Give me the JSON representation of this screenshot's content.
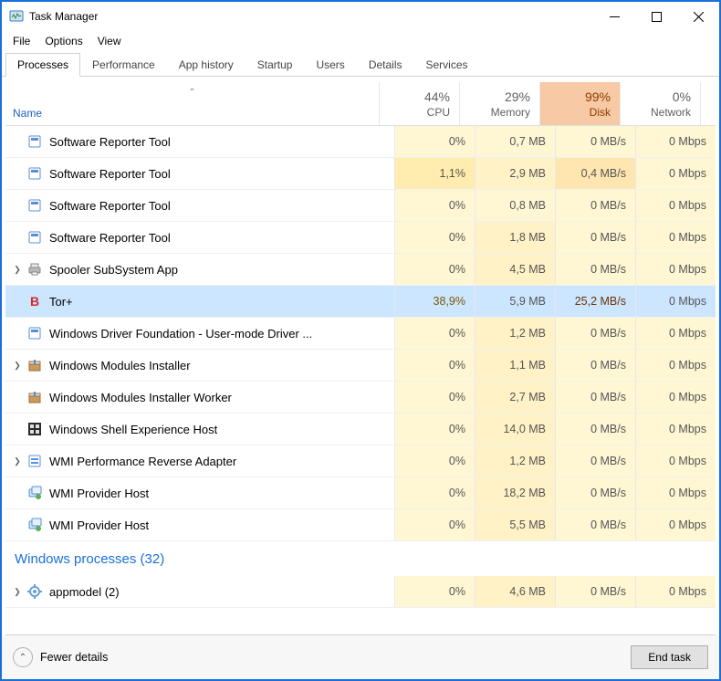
{
  "window": {
    "title": "Task Manager"
  },
  "menu": {
    "items": [
      "File",
      "Options",
      "View"
    ]
  },
  "tabs": {
    "items": [
      "Processes",
      "Performance",
      "App history",
      "Startup",
      "Users",
      "Details",
      "Services"
    ],
    "active_index": 0
  },
  "columns": {
    "name_label": "Name",
    "cols": [
      {
        "pct": "44%",
        "label": "CPU",
        "hot": false
      },
      {
        "pct": "29%",
        "label": "Memory",
        "hot": false
      },
      {
        "pct": "99%",
        "label": "Disk",
        "hot": true
      },
      {
        "pct": "0%",
        "label": "Network",
        "hot": false
      }
    ]
  },
  "rows": [
    {
      "icon": "generic-app",
      "name": "Software Reporter Tool",
      "expandable": false,
      "selected": false,
      "cpu": "0%",
      "cpu_cls": "cpu-low",
      "mem": "0,7 MB",
      "mem_cls": "memlow",
      "disk": "0 MB/s",
      "disk_cls": "disk-zero",
      "net": "0 Mbps"
    },
    {
      "icon": "generic-app",
      "name": "Software Reporter Tool",
      "expandable": false,
      "selected": false,
      "cpu": "1,1%",
      "cpu_cls": "cpu-mid",
      "mem": "2,9 MB",
      "mem_cls": "mem",
      "disk": "0,4 MB/s",
      "disk_cls": "disk-mid",
      "net": "0 Mbps"
    },
    {
      "icon": "generic-app",
      "name": "Software Reporter Tool",
      "expandable": false,
      "selected": false,
      "cpu": "0%",
      "cpu_cls": "cpu-low",
      "mem": "0,8 MB",
      "mem_cls": "memlow",
      "disk": "0 MB/s",
      "disk_cls": "disk-zero",
      "net": "0 Mbps"
    },
    {
      "icon": "generic-app",
      "name": "Software Reporter Tool",
      "expandable": false,
      "selected": false,
      "cpu": "0%",
      "cpu_cls": "cpu-low",
      "mem": "1,8 MB",
      "mem_cls": "mem",
      "disk": "0 MB/s",
      "disk_cls": "disk-zero",
      "net": "0 Mbps"
    },
    {
      "icon": "printer",
      "name": "Spooler SubSystem App",
      "expandable": true,
      "selected": false,
      "cpu": "0%",
      "cpu_cls": "cpu-low",
      "mem": "4,5 MB",
      "mem_cls": "mem",
      "disk": "0 MB/s",
      "disk_cls": "disk-zero",
      "net": "0 Mbps"
    },
    {
      "icon": "tor",
      "name": "Tor+",
      "expandable": false,
      "selected": true,
      "cpu": "38,9%",
      "cpu_cls": "cpu-high",
      "mem": "5,9 MB",
      "mem_cls": "mem",
      "disk": "25,2 MB/s",
      "disk_cls": "disk-hot",
      "net": "0 Mbps"
    },
    {
      "icon": "generic-app",
      "name": "Windows Driver Foundation - User-mode Driver ...",
      "expandable": false,
      "selected": false,
      "cpu": "0%",
      "cpu_cls": "cpu-low",
      "mem": "1,2 MB",
      "mem_cls": "mem",
      "disk": "0 MB/s",
      "disk_cls": "disk-zero",
      "net": "0 Mbps"
    },
    {
      "icon": "installer",
      "name": "Windows Modules Installer",
      "expandable": true,
      "selected": false,
      "cpu": "0%",
      "cpu_cls": "cpu-low",
      "mem": "1,1 MB",
      "mem_cls": "mem",
      "disk": "0 MB/s",
      "disk_cls": "disk-zero",
      "net": "0 Mbps"
    },
    {
      "icon": "installer",
      "name": "Windows Modules Installer Worker",
      "expandable": false,
      "selected": false,
      "cpu": "0%",
      "cpu_cls": "cpu-low",
      "mem": "2,7 MB",
      "mem_cls": "mem",
      "disk": "0 MB/s",
      "disk_cls": "disk-zero",
      "net": "0 Mbps"
    },
    {
      "icon": "shell",
      "name": "Windows Shell Experience Host",
      "expandable": false,
      "selected": false,
      "cpu": "0%",
      "cpu_cls": "cpu-low",
      "mem": "14,0 MB",
      "mem_cls": "mem",
      "disk": "0 MB/s",
      "disk_cls": "disk-zero",
      "net": "0 Mbps"
    },
    {
      "icon": "wmi",
      "name": "WMI Performance Reverse Adapter",
      "expandable": true,
      "selected": false,
      "cpu": "0%",
      "cpu_cls": "cpu-low",
      "mem": "1,2 MB",
      "mem_cls": "mem",
      "disk": "0 MB/s",
      "disk_cls": "disk-zero",
      "net": "0 Mbps"
    },
    {
      "icon": "wmihost",
      "name": "WMI Provider Host",
      "expandable": false,
      "selected": false,
      "cpu": "0%",
      "cpu_cls": "cpu-low",
      "mem": "18,2 MB",
      "mem_cls": "mem",
      "disk": "0 MB/s",
      "disk_cls": "disk-zero",
      "net": "0 Mbps"
    },
    {
      "icon": "wmihost",
      "name": "WMI Provider Host",
      "expandable": false,
      "selected": false,
      "cpu": "0%",
      "cpu_cls": "cpu-low",
      "mem": "5,5 MB",
      "mem_cls": "mem",
      "disk": "0 MB/s",
      "disk_cls": "disk-zero",
      "net": "0 Mbps"
    }
  ],
  "group": {
    "label": "Windows processes (32)"
  },
  "group_rows": [
    {
      "icon": "gear",
      "name": "appmodel (2)",
      "expandable": true,
      "selected": false,
      "cpu": "0%",
      "cpu_cls": "cpu-low",
      "mem": "4,6 MB",
      "mem_cls": "mem",
      "disk": "0 MB/s",
      "disk_cls": "disk-zero",
      "net": "0 Mbps"
    }
  ],
  "footer": {
    "fewer_details": "Fewer details",
    "end_task": "End task"
  },
  "colors": {
    "window_border": "#1a6fd8",
    "selected_row": "#cde6ff",
    "cpu_low": "#fff7d4",
    "cpu_mid": "#ffecae",
    "cpu_high": "#ffd97a",
    "mem": "#fff2c7",
    "disk_hot_header": "#f7c9a4",
    "disk_hot_cell": "#e9a86e",
    "link_blue": "#1a6fd8"
  }
}
